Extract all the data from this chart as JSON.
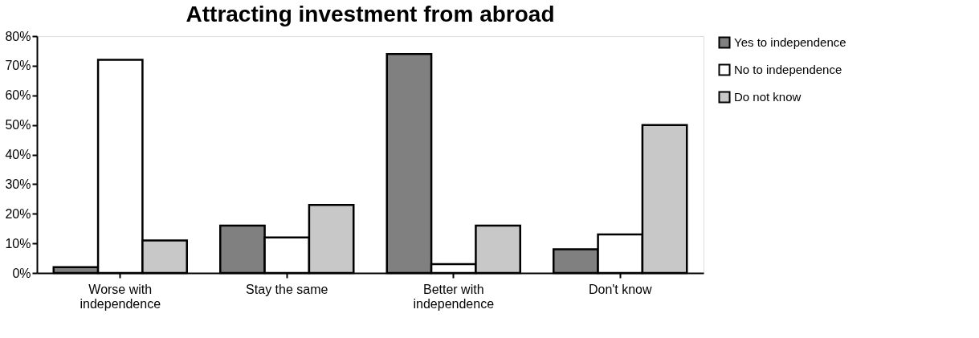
{
  "chart_data": {
    "type": "bar",
    "title": "Attracting investment from abroad",
    "categories": [
      "Worse with independence",
      "Stay the same",
      "Better with independence",
      "Don't know"
    ],
    "series": [
      {
        "name": "Yes to independence",
        "color": "#808080",
        "values": [
          2,
          16,
          74,
          8
        ]
      },
      {
        "name": "No to independence",
        "color": "#ffffff",
        "values": [
          72,
          12,
          3,
          13
        ]
      },
      {
        "name": "Do not know",
        "color": "#c8c8c8",
        "values": [
          11,
          23,
          16,
          50
        ]
      }
    ],
    "ylim": [
      0,
      80
    ],
    "yticks": [
      {
        "value": 0,
        "label": "0%"
      },
      {
        "value": 10,
        "label": "10%"
      },
      {
        "value": 20,
        "label": "20%"
      },
      {
        "value": 30,
        "label": "30%"
      },
      {
        "value": 40,
        "label": "40%"
      },
      {
        "value": 50,
        "label": "50%"
      },
      {
        "value": 60,
        "label": "60%"
      },
      {
        "value": 70,
        "label": "70%"
      },
      {
        "value": 80,
        "label": "80%"
      }
    ],
    "grid": false,
    "legend": "right"
  }
}
